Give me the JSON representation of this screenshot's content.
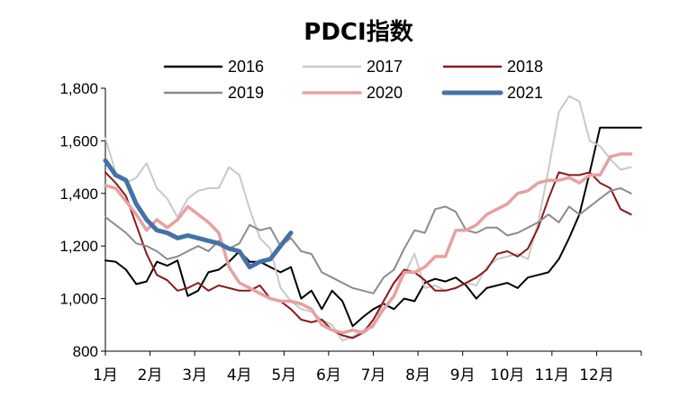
{
  "chart_data": {
    "type": "line",
    "title": "PDCI指数",
    "xlabel": "",
    "ylabel": "",
    "ylim": [
      800,
      1800
    ],
    "y_ticks": [
      "800",
      "1,000",
      "1,200",
      "1,400",
      "1,600",
      "1,800"
    ],
    "y_tick_values": [
      800,
      1000,
      1200,
      1400,
      1600,
      1800
    ],
    "x_ticks": [
      "1月",
      "2月",
      "3月",
      "4月",
      "5月",
      "6月",
      "7月",
      "8月",
      "9月",
      "10月",
      "11月",
      "12月"
    ],
    "x_unit": "week",
    "xlim": [
      1,
      53
    ],
    "legend_position": "top",
    "grid": false,
    "series": [
      {
        "name": "2016",
        "color": "#000000",
        "width": 2,
        "x": [
          1,
          2,
          3,
          4,
          5,
          6,
          7,
          8,
          9,
          10,
          11,
          12,
          13,
          14,
          15,
          16,
          17,
          18,
          19,
          20,
          21,
          22,
          23,
          24,
          25,
          26,
          27,
          28,
          29,
          30,
          31,
          32,
          33,
          34,
          35,
          36,
          37,
          38,
          39,
          40,
          41,
          42,
          43,
          44,
          45,
          46,
          47,
          48,
          49,
          50,
          51,
          52,
          53
        ],
        "values": [
          1145,
          1140,
          1110,
          1055,
          1065,
          1140,
          1125,
          1145,
          1010,
          1030,
          1100,
          1110,
          1140,
          1180,
          1140,
          1140,
          1120,
          1100,
          1120,
          1000,
          1030,
          960,
          1030,
          990,
          895,
          930,
          960,
          980,
          960,
          1000,
          990,
          1060,
          1075,
          1065,
          1080,
          1050,
          1000,
          1040,
          1050,
          1060,
          1040,
          1080,
          1090,
          1100,
          1150,
          1230,
          1320,
          1480,
          1650,
          1650,
          1650,
          1650,
          1650
        ]
      },
      {
        "name": "2017",
        "color": "#c9c9c9",
        "width": 2,
        "x": [
          1,
          2,
          3,
          4,
          5,
          6,
          7,
          8,
          9,
          10,
          11,
          12,
          13,
          14,
          15,
          16,
          17,
          18,
          19,
          20,
          21,
          22,
          23,
          24,
          25,
          26,
          27,
          28,
          29,
          30,
          31,
          32,
          33,
          34,
          35,
          36,
          37,
          38,
          39,
          40,
          41,
          42,
          43,
          44,
          45,
          46,
          47,
          48,
          49,
          50,
          51,
          52
        ],
        "values": [
          1610,
          1480,
          1440,
          1460,
          1515,
          1420,
          1380,
          1310,
          1380,
          1410,
          1420,
          1420,
          1500,
          1470,
          1340,
          1230,
          1190,
          1040,
          990,
          960,
          950,
          920,
          900,
          840,
          855,
          880,
          890,
          990,
          1060,
          1090,
          1170,
          1040,
          1050,
          1030,
          1040,
          1060,
          1050,
          1120,
          1150,
          1160,
          1170,
          1150,
          1290,
          1490,
          1710,
          1770,
          1750,
          1600,
          1580,
          1530,
          1490,
          1500
        ]
      },
      {
        "name": "2018",
        "color": "#8b1a1a",
        "width": 2,
        "x": [
          1,
          2,
          3,
          4,
          5,
          6,
          7,
          8,
          9,
          10,
          11,
          12,
          13,
          14,
          15,
          16,
          17,
          18,
          19,
          20,
          21,
          22,
          23,
          24,
          25,
          26,
          27,
          28,
          29,
          30,
          31,
          32,
          33,
          34,
          35,
          36,
          37,
          38,
          39,
          40,
          41,
          42,
          43,
          44,
          45,
          46,
          47,
          48,
          49,
          50,
          51,
          52
        ],
        "values": [
          1480,
          1440,
          1390,
          1280,
          1170,
          1090,
          1070,
          1030,
          1040,
          1060,
          1030,
          1050,
          1040,
          1030,
          1030,
          1050,
          1000,
          990,
          960,
          920,
          910,
          920,
          880,
          860,
          850,
          870,
          920,
          990,
          1060,
          1110,
          1100,
          1070,
          1030,
          1030,
          1040,
          1060,
          1080,
          1110,
          1170,
          1180,
          1160,
          1190,
          1270,
          1380,
          1480,
          1470,
          1470,
          1480,
          1440,
          1420,
          1340,
          1320
        ]
      },
      {
        "name": "2019",
        "color": "#8c8c8c",
        "width": 2,
        "x": [
          1,
          2,
          3,
          4,
          5,
          6,
          7,
          8,
          9,
          10,
          11,
          12,
          13,
          14,
          15,
          16,
          17,
          18,
          19,
          20,
          21,
          22,
          23,
          24,
          25,
          26,
          27,
          28,
          29,
          30,
          31,
          32,
          33,
          34,
          35,
          36,
          37,
          38,
          39,
          40,
          41,
          42,
          43,
          44,
          45,
          46,
          47,
          48,
          49,
          50,
          51,
          52
        ],
        "values": [
          1310,
          1280,
          1250,
          1210,
          1200,
          1180,
          1150,
          1160,
          1180,
          1200,
          1180,
          1220,
          1190,
          1210,
          1280,
          1260,
          1270,
          1200,
          1230,
          1180,
          1170,
          1100,
          1080,
          1060,
          1040,
          1030,
          1020,
          1080,
          1110,
          1190,
          1260,
          1250,
          1340,
          1350,
          1330,
          1260,
          1250,
          1270,
          1270,
          1240,
          1250,
          1270,
          1290,
          1320,
          1290,
          1350,
          1320,
          1350,
          1380,
          1410,
          1420,
          1400
        ]
      },
      {
        "name": "2020",
        "color": "#e8a0a0",
        "width": 3.5,
        "x": [
          1,
          2,
          3,
          4,
          5,
          6,
          7,
          8,
          9,
          10,
          11,
          12,
          13,
          14,
          15,
          16,
          17,
          18,
          19,
          20,
          21,
          22,
          23,
          24,
          25,
          26,
          27,
          28,
          29,
          30,
          31,
          32,
          33,
          34,
          35,
          36,
          37,
          38,
          39,
          40,
          41,
          42,
          43,
          44,
          45,
          46,
          47,
          48,
          49,
          50,
          51,
          52
        ],
        "values": [
          1430,
          1420,
          1370,
          1320,
          1260,
          1300,
          1270,
          1300,
          1350,
          1320,
          1290,
          1250,
          1120,
          1060,
          1040,
          1020,
          1000,
          990,
          990,
          980,
          960,
          900,
          880,
          870,
          880,
          870,
          900,
          960,
          1010,
          1100,
          1100,
          1120,
          1160,
          1160,
          1260,
          1260,
          1280,
          1320,
          1340,
          1360,
          1400,
          1410,
          1440,
          1450,
          1450,
          1460,
          1440,
          1470,
          1470,
          1540,
          1550,
          1550
        ]
      },
      {
        "name": "2021",
        "color": "#4472a8",
        "width": 5,
        "x": [
          1,
          2,
          3,
          4,
          5,
          6,
          7,
          8,
          9,
          10,
          11,
          12,
          13,
          14,
          15,
          16,
          17,
          18,
          19
        ],
        "values": [
          1525,
          1470,
          1450,
          1360,
          1300,
          1260,
          1250,
          1230,
          1240,
          1230,
          1220,
          1210,
          1190,
          1180,
          1120,
          1140,
          1150,
          1200,
          1250
        ]
      }
    ]
  }
}
